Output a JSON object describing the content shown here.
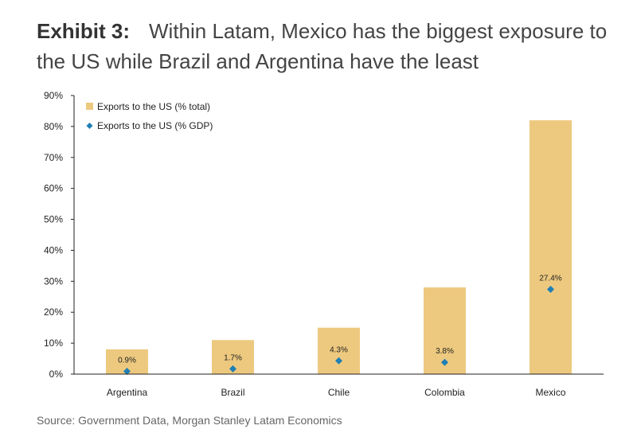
{
  "title": {
    "exhibit": "Exhibit 3:",
    "text": "Within Latam, Mexico has the biggest exposure to the US while Brazil and Argentina have the least"
  },
  "source": "Source: Government Data, Morgan Stanley Latam Economics",
  "chart_data": {
    "type": "bar",
    "categories": [
      "Argentina",
      "Brazil",
      "Chile",
      "Colombia",
      "Mexico"
    ],
    "series": [
      {
        "name": "Exports to the US (% total)",
        "kind": "bar",
        "color": "#EDC97F",
        "values": [
          8,
          11,
          15,
          28,
          82
        ]
      },
      {
        "name": "Exports to the US (% GDP)",
        "kind": "scatter",
        "color": "#1F7FB4",
        "values": [
          0.9,
          1.7,
          4.3,
          3.8,
          27.4
        ],
        "labels": [
          "0.9%",
          "1.7%",
          "4.3%",
          "3.8%",
          "27.4%"
        ]
      }
    ],
    "ylim": [
      0,
      90
    ],
    "yticks": [
      "0%",
      "10%",
      "20%",
      "30%",
      "40%",
      "50%",
      "60%",
      "70%",
      "80%",
      "90%"
    ],
    "legend": "top-left",
    "grid": false
  }
}
